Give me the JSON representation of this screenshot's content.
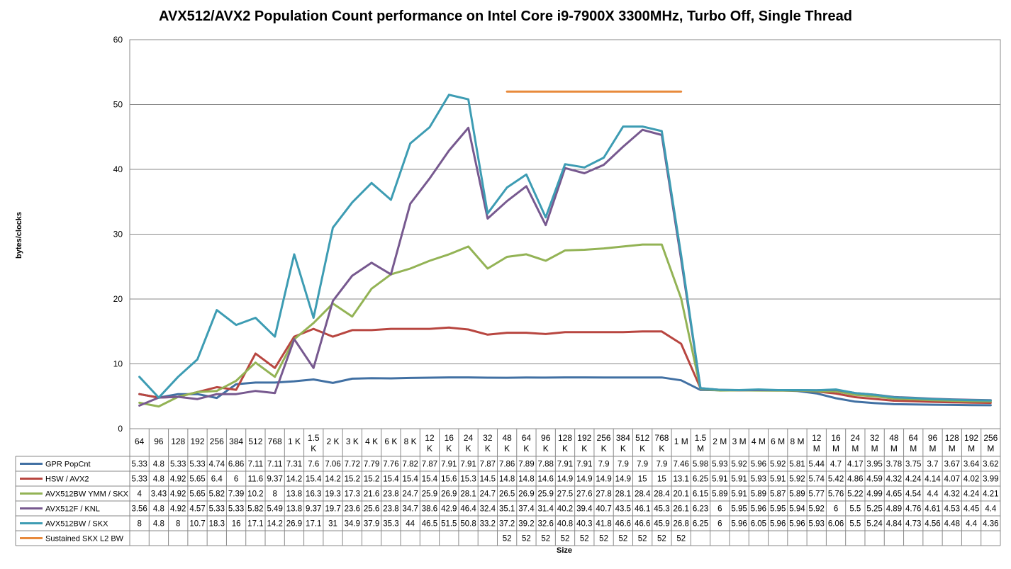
{
  "chart_data": {
    "type": "line",
    "title": "AVX512/AVX2 Population Count performance on Intel Core i9-7900X 3300MHz, Turbo Off, Single Thread",
    "xlabel": "Size",
    "ylabel": "bytes/clocks",
    "ylim": [
      0,
      60
    ],
    "yticks": [
      "0",
      "10",
      "20",
      "30",
      "40",
      "50",
      "60"
    ],
    "grid": "horizontal",
    "legend": "data-table",
    "categories": [
      "64",
      "96",
      "128",
      "192",
      "256",
      "384",
      "512",
      "768",
      "1 K",
      "1.5 K",
      "2 K",
      "3 K",
      "4 K",
      "6 K",
      "8 K",
      "12 K",
      "16 K",
      "24 K",
      "32 K",
      "48 K",
      "64 K",
      "96 K",
      "128 K",
      "192 K",
      "256 K",
      "384 K",
      "512 K",
      "768 K",
      "1 M",
      "1.5 M",
      "2 M",
      "3 M",
      "4 M",
      "6 M",
      "8 M",
      "12 M",
      "16 M",
      "24 M",
      "32 M",
      "48 M",
      "64 M",
      "96 M",
      "128 M",
      "192 M",
      "256 M"
    ],
    "series": [
      {
        "name": "GPR PopCnt",
        "color": "#4170a3",
        "values": [
          "5.33",
          "4.8",
          "5.33",
          "5.33",
          "4.74",
          "6.86",
          "7.11",
          "7.11",
          "7.31",
          "7.6",
          "7.06",
          "7.72",
          "7.79",
          "7.76",
          "7.82",
          "7.87",
          "7.91",
          "7.91",
          "7.87",
          "7.86",
          "7.89",
          "7.88",
          "7.91",
          "7.91",
          "7.9",
          "7.9",
          "7.9",
          "7.9",
          "7.46",
          "5.98",
          "5.93",
          "5.92",
          "5.96",
          "5.92",
          "5.81",
          "5.44",
          "4.7",
          "4.17",
          "3.95",
          "3.78",
          "3.75",
          "3.7",
          "3.67",
          "3.64",
          "3.62"
        ]
      },
      {
        "name": "HSW / AVX2",
        "color": "#b84640",
        "values": [
          "5.33",
          "4.8",
          "4.92",
          "5.65",
          "6.4",
          "6",
          "11.6",
          "9.37",
          "14.2",
          "15.4",
          "14.2",
          "15.2",
          "15.2",
          "15.4",
          "15.4",
          "15.4",
          "15.6",
          "15.3",
          "14.5",
          "14.8",
          "14.8",
          "14.6",
          "14.9",
          "14.9",
          "14.9",
          "14.9",
          "15",
          "15",
          "13.1",
          "6.25",
          "5.91",
          "5.91",
          "5.93",
          "5.91",
          "5.92",
          "5.74",
          "5.42",
          "4.86",
          "4.59",
          "4.32",
          "4.24",
          "4.14",
          "4.07",
          "4.02",
          "3.99"
        ]
      },
      {
        "name": "AVX512BW YMM / SKX",
        "color": "#93b355",
        "values": [
          "4",
          "3.43",
          "4.92",
          "5.65",
          "5.82",
          "7.39",
          "10.2",
          "8",
          "13.8",
          "16.3",
          "19.3",
          "17.3",
          "21.6",
          "23.8",
          "24.7",
          "25.9",
          "26.9",
          "28.1",
          "24.7",
          "26.5",
          "26.9",
          "25.9",
          "27.5",
          "27.6",
          "27.8",
          "28.1",
          "28.4",
          "28.4",
          "20.1",
          "6.15",
          "5.89",
          "5.91",
          "5.89",
          "5.87",
          "5.89",
          "5.77",
          "5.76",
          "5.22",
          "4.99",
          "4.65",
          "4.54",
          "4.4",
          "4.32",
          "4.24",
          "4.21"
        ]
      },
      {
        "name": "AVX512F / KNL",
        "color": "#77598f",
        "values": [
          "3.56",
          "4.8",
          "4.92",
          "4.57",
          "5.33",
          "5.33",
          "5.82",
          "5.49",
          "13.8",
          "9.37",
          "19.7",
          "23.6",
          "25.6",
          "23.8",
          "34.7",
          "38.6",
          "42.9",
          "46.4",
          "32.4",
          "35.1",
          "37.4",
          "31.4",
          "40.2",
          "39.4",
          "40.7",
          "43.5",
          "46.1",
          "45.3",
          "26.1",
          "6.23",
          "6",
          "5.95",
          "5.96",
          "5.95",
          "5.94",
          "5.92",
          "6",
          "5.5",
          "5.25",
          "4.89",
          "4.76",
          "4.61",
          "4.53",
          "4.45",
          "4.4"
        ]
      },
      {
        "name": "AVX512BW / SKX",
        "color": "#3d9cb3",
        "values": [
          "8",
          "4.8",
          "8",
          "10.7",
          "18.3",
          "16",
          "17.1",
          "14.2",
          "26.9",
          "17.1",
          "31",
          "34.9",
          "37.9",
          "35.3",
          "44",
          "46.5",
          "51.5",
          "50.8",
          "33.2",
          "37.2",
          "39.2",
          "32.6",
          "40.8",
          "40.3",
          "41.8",
          "46.6",
          "46.6",
          "45.9",
          "26.8",
          "6.25",
          "6",
          "5.96",
          "6.05",
          "5.96",
          "5.96",
          "5.93",
          "6.06",
          "5.5",
          "5.24",
          "4.84",
          "4.73",
          "4.56",
          "4.48",
          "4.4",
          "4.36"
        ]
      },
      {
        "name": "Sustained SKX L2 BW",
        "color": "#e88a3c",
        "values": [
          "",
          "",
          "",
          "",
          "",
          "",
          "",
          "",
          "",
          "",
          "",
          "",
          "",
          "",
          "",
          "",
          "",
          "",
          "",
          "52",
          "52",
          "52",
          "52",
          "52",
          "52",
          "52",
          "52",
          "52",
          "52",
          "",
          "",
          "",
          "",
          "",
          "",
          "",
          "",
          "",
          "",
          "",
          "",
          "",
          "",
          "",
          ""
        ]
      }
    ]
  }
}
